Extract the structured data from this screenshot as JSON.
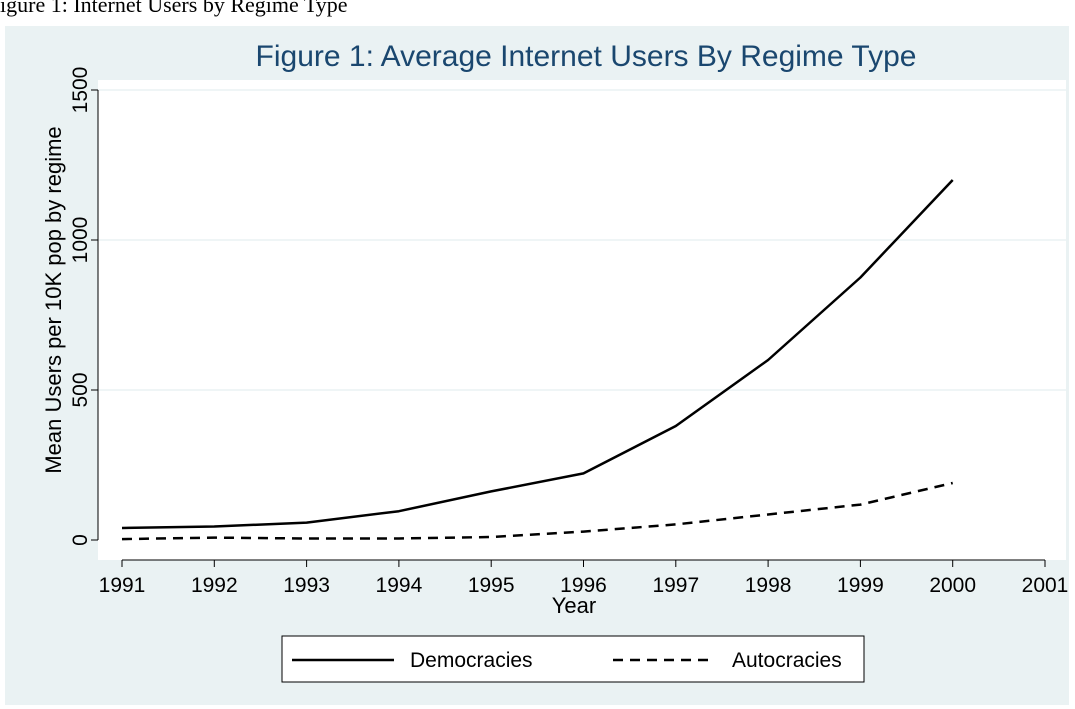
{
  "document": {
    "caption": "igure 1: Internet Users by Regime Type"
  },
  "colors": {
    "outer_background": "#eaf2f3",
    "plot_background": "#ffffff",
    "grid": "#eaf2f3",
    "title": "#1a476f",
    "lines": "#000000"
  },
  "chart_data": {
    "type": "line",
    "title": "Figure 1: Average Internet Users By Regime Type",
    "xlabel": "Year",
    "ylabel": "Mean Users per 10K pop by regime",
    "xlim": [
      1991,
      2001
    ],
    "ylim": [
      0,
      1500
    ],
    "x_ticks": [
      1991,
      1992,
      1993,
      1994,
      1995,
      1996,
      1997,
      1998,
      1999,
      2000,
      2001
    ],
    "y_ticks": [
      0,
      500,
      1000,
      1500
    ],
    "grid": true,
    "legend_position": "bottom",
    "series": [
      {
        "name": "Democracies",
        "line_style": "solid",
        "x": [
          1991,
          1992,
          1993,
          1994,
          1995,
          1996,
          1997,
          1998,
          1999,
          2000
        ],
        "values": [
          40,
          45,
          58,
          96,
          162,
          222,
          380,
          600,
          875,
          1200
        ]
      },
      {
        "name": "Autocracies",
        "line_style": "dashed",
        "x": [
          1991,
          1992,
          1993,
          1994,
          1995,
          1996,
          1997,
          1998,
          1999,
          2000
        ],
        "values": [
          3,
          8,
          5,
          5,
          10,
          28,
          52,
          85,
          118,
          190
        ]
      }
    ]
  }
}
